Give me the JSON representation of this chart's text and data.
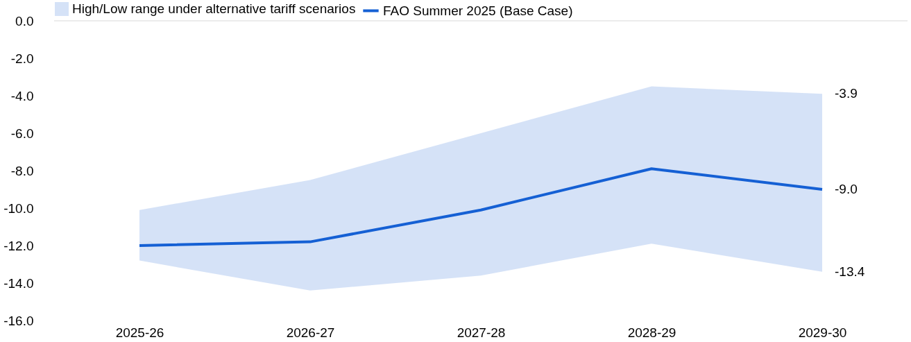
{
  "chart_data": {
    "type": "line",
    "categories": [
      "2025-26",
      "2026-27",
      "2027-28",
      "2028-29",
      "2029-30"
    ],
    "series": [
      {
        "name": "FAO Summer 2025 (Base Case)",
        "color": "#1560d4",
        "values": [
          -12.0,
          -11.8,
          -10.1,
          -7.9,
          -9.0
        ],
        "value_labels": [
          null,
          null,
          null,
          null,
          "-9.0"
        ],
        "lower": [
          -12.8,
          -14.4,
          -13.6,
          -11.9,
          -13.4
        ],
        "upper": [
          -10.1,
          -8.5,
          -6.0,
          -3.5,
          -3.9
        ]
      }
    ],
    "annotations": [
      "High/Low range under alternative tariff scenarios",
      {
        "text": "-3.9",
        "x": "2029-30",
        "y": -3.9
      },
      {
        "text": "-13.4",
        "x": "2029-30",
        "y": -13.4
      }
    ],
    "ylim": [
      -16,
      0
    ],
    "yticks": [
      {
        "value": 0,
        "label": "0.0"
      },
      {
        "value": -2,
        "label": "-2.0"
      },
      {
        "value": -4,
        "label": "-4.0"
      },
      {
        "value": -6,
        "label": "-6.0"
      },
      {
        "value": -8,
        "label": "-8.0"
      },
      {
        "value": -10,
        "label": "-10.0"
      },
      {
        "value": -12,
        "label": "-12.0"
      },
      {
        "value": -14,
        "label": "-14.0"
      },
      {
        "value": -16,
        "label": "-16.0"
      }
    ],
    "legend": "top",
    "grid": false,
    "line_style": "solid",
    "marker": "none"
  }
}
